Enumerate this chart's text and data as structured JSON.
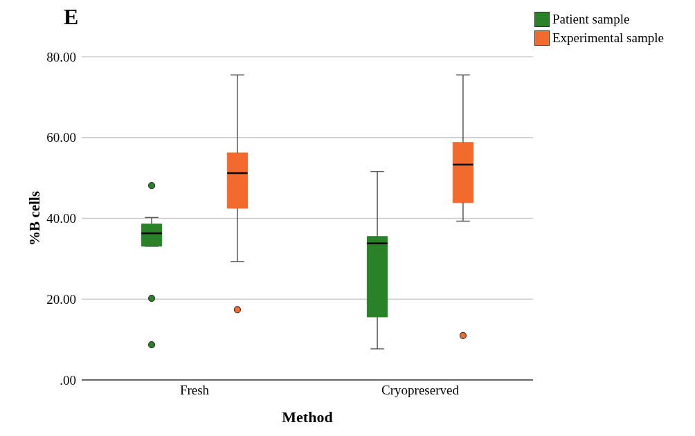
{
  "chart_data": {
    "type": "box",
    "annotations": [
      "E"
    ],
    "xlabel": "Method",
    "ylabel": "%B cells",
    "categories": [
      "Fresh",
      "Cryopreserved"
    ],
    "series": [
      {
        "name": "Patient sample",
        "color": "#2a8228",
        "boxes": [
          {
            "low": 33.1,
            "q1": 33.1,
            "median": 36.3,
            "q3": 38.6,
            "high": 40.2,
            "outliers": [
              48.1,
              20.2,
              8.7
            ]
          },
          {
            "low": 7.7,
            "q1": 15.6,
            "median": 33.8,
            "q3": 35.5,
            "high": 51.6
          }
        ]
      },
      {
        "name": "Experimental sample",
        "color": "#f26a2e",
        "boxes": [
          {
            "low": 29.3,
            "q1": 42.5,
            "median": 51.2,
            "q3": 56.2,
            "high": 75.5,
            "outliers": [
              17.4
            ]
          },
          {
            "low": 39.3,
            "q1": 43.9,
            "median": 53.3,
            "q3": 58.8,
            "high": 75.5,
            "outliers": [
              11.0
            ]
          }
        ]
      }
    ],
    "ylim": [
      0,
      80
    ],
    "yticks": [
      {
        "value": 0,
        "label": ".00"
      },
      {
        "value": 20,
        "label": "20.00"
      },
      {
        "value": 40,
        "label": "40.00"
      },
      {
        "value": 60,
        "label": "60.00"
      },
      {
        "value": 80,
        "label": "80.00"
      }
    ],
    "grid": "y",
    "legend": "top right"
  }
}
